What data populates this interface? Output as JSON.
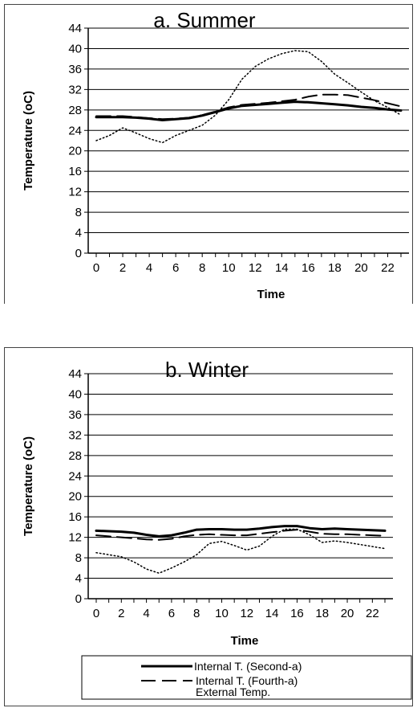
{
  "chart_data": [
    {
      "type": "line",
      "title": "a. Summer",
      "xlabel": "Time",
      "ylabel": "Temperature (oC)",
      "ylim": [
        0,
        44
      ],
      "xlim": [
        0,
        23
      ],
      "yticks": [
        0,
        4,
        8,
        12,
        16,
        20,
        24,
        28,
        32,
        36,
        40,
        44
      ],
      "xticks": [
        0,
        2,
        4,
        6,
        8,
        10,
        12,
        14,
        16,
        18,
        20,
        22
      ],
      "grid": "horizontal",
      "x": [
        0,
        1,
        2,
        3,
        4,
        5,
        6,
        7,
        8,
        9,
        10,
        11,
        12,
        13,
        14,
        15,
        16,
        17,
        18,
        19,
        20,
        21,
        22,
        23
      ],
      "series": [
        {
          "name": "Internal T. (Second-a)",
          "style": "solid",
          "color": "#000000",
          "values": [
            26.6,
            26.6,
            26.6,
            26.5,
            26.3,
            26.0,
            26.2,
            26.4,
            26.9,
            27.6,
            28.3,
            28.8,
            29.0,
            29.2,
            29.4,
            29.6,
            29.5,
            29.3,
            29.1,
            28.9,
            28.6,
            28.4,
            28.1,
            27.9
          ]
        },
        {
          "name": "Internal T. (Fourth-a)",
          "style": "dashed",
          "color": "#000000",
          "values": [
            26.8,
            26.8,
            26.8,
            26.6,
            26.4,
            26.2,
            26.3,
            26.5,
            27.0,
            27.7,
            28.5,
            29.0,
            29.2,
            29.4,
            29.7,
            30.0,
            30.6,
            31.0,
            31.0,
            30.9,
            30.4,
            29.9,
            29.3,
            28.7
          ]
        },
        {
          "name": "External Temp.",
          "style": "dotted",
          "color": "#000000",
          "values": [
            22.0,
            23.0,
            24.5,
            23.5,
            22.4,
            21.6,
            23.0,
            24.0,
            25.0,
            27.0,
            30.0,
            34.0,
            36.5,
            38.0,
            39.0,
            39.6,
            39.4,
            37.5,
            35.0,
            33.3,
            31.5,
            29.8,
            28.5,
            27.0
          ]
        }
      ]
    },
    {
      "type": "line",
      "title": "b. Winter",
      "xlabel": "Time",
      "ylabel": "Temperature (oC)",
      "ylim": [
        0,
        44
      ],
      "xlim": [
        0,
        23
      ],
      "yticks": [
        0,
        4,
        8,
        12,
        16,
        20,
        24,
        28,
        32,
        36,
        40,
        44
      ],
      "xticks": [
        0,
        2,
        4,
        6,
        8,
        10,
        12,
        14,
        16,
        18,
        20,
        22
      ],
      "grid": "horizontal",
      "x": [
        0,
        1,
        2,
        3,
        4,
        5,
        6,
        7,
        8,
        9,
        10,
        11,
        12,
        13,
        14,
        15,
        16,
        17,
        18,
        19,
        20,
        21,
        22,
        23
      ],
      "series": [
        {
          "name": "Internal T. (Second-a)",
          "style": "solid",
          "color": "#000000",
          "values": [
            13.3,
            13.2,
            13.1,
            12.9,
            12.5,
            12.2,
            12.4,
            12.9,
            13.5,
            13.6,
            13.6,
            13.5,
            13.5,
            13.7,
            14.0,
            14.2,
            14.2,
            13.8,
            13.6,
            13.7,
            13.6,
            13.5,
            13.4,
            13.3
          ]
        },
        {
          "name": "Internal T. (Fourth-a)",
          "style": "dashed",
          "color": "#000000",
          "values": [
            12.4,
            12.2,
            12.0,
            11.8,
            11.6,
            11.5,
            11.7,
            12.2,
            12.5,
            12.6,
            12.5,
            12.4,
            12.4,
            12.7,
            13.0,
            13.3,
            13.5,
            13.1,
            12.7,
            12.6,
            12.6,
            12.5,
            12.4,
            12.3
          ]
        },
        {
          "name": "External Temp.",
          "style": "dotted",
          "color": "#000000",
          "values": [
            9.0,
            8.6,
            8.2,
            7.2,
            5.8,
            5.0,
            6.0,
            7.2,
            8.6,
            10.8,
            11.2,
            10.4,
            9.5,
            10.3,
            12.2,
            13.6,
            13.6,
            12.5,
            11.0,
            11.3,
            11.0,
            10.6,
            10.2,
            9.8
          ]
        }
      ]
    }
  ],
  "legend": {
    "placement": "bottom",
    "items": [
      "Internal T. (Second-a)",
      "Internal T. (Fourth-a)",
      "External Temp."
    ]
  }
}
